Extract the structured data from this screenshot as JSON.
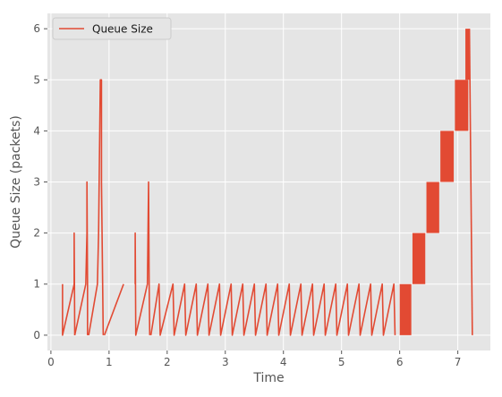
{
  "chart_data": {
    "type": "line",
    "title": "",
    "xlabel": "Time",
    "ylabel": "Queue Size (packets)",
    "xlim": [
      -0.06,
      7.56
    ],
    "ylim": [
      -0.3,
      6.3
    ],
    "x_ticks": [
      0,
      1,
      2,
      3,
      4,
      5,
      6,
      7
    ],
    "y_ticks": [
      0,
      1,
      2,
      3,
      4,
      5,
      6
    ],
    "grid": true,
    "style": "ggplot",
    "legend_position": "upper-left",
    "series": [
      {
        "name": "Queue Size",
        "color": "#E24A33",
        "segments": [
          [
            [
              0.2,
              1
            ],
            [
              0.2,
              0
            ],
            [
              0.4,
              1
            ],
            [
              0.4,
              2
            ],
            [
              0.41,
              0
            ]
          ],
          [
            [
              0.41,
              0
            ],
            [
              0.6,
              1
            ],
            [
              0.62,
              2
            ],
            [
              0.62,
              3
            ],
            [
              0.63,
              1
            ],
            [
              0.63,
              0
            ]
          ],
          [
            [
              0.65,
              0
            ],
            [
              0.8,
              1
            ],
            [
              0.82,
              2
            ],
            [
              0.83,
              3
            ],
            [
              0.84,
              4
            ],
            [
              0.85,
              5
            ],
            [
              0.87,
              5
            ],
            [
              0.87,
              3
            ],
            [
              0.89,
              1
            ],
            [
              0.9,
              0
            ]
          ],
          [
            [
              0.92,
              0
            ],
            [
              1.25,
              1
            ]
          ],
          [
            [
              1.45,
              1
            ],
            [
              1.45,
              2
            ],
            [
              1.46,
              0
            ],
            [
              1.66,
              1
            ],
            [
              1.67,
              2
            ],
            [
              1.68,
              3
            ],
            [
              1.69,
              1
            ],
            [
              1.7,
              0
            ]
          ],
          [
            [
              1.72,
              0
            ],
            [
              1.86,
              1
            ],
            [
              1.88,
              0
            ],
            [
              2.1,
              1
            ],
            [
              2.12,
              0
            ],
            [
              2.3,
              1
            ],
            [
              2.32,
              0
            ],
            [
              2.5,
              1
            ],
            [
              2.52,
              0
            ],
            [
              2.7,
              1
            ],
            [
              2.72,
              0
            ],
            [
              2.9,
              1
            ],
            [
              2.92,
              0
            ],
            [
              3.1,
              1
            ],
            [
              3.12,
              0
            ],
            [
              3.3,
              1
            ],
            [
              3.32,
              0
            ],
            [
              3.5,
              1
            ],
            [
              3.52,
              0
            ],
            [
              3.7,
              1
            ],
            [
              3.72,
              0
            ],
            [
              3.9,
              1
            ],
            [
              3.92,
              0
            ],
            [
              4.1,
              1
            ],
            [
              4.12,
              0
            ],
            [
              4.3,
              1
            ],
            [
              4.32,
              0
            ],
            [
              4.5,
              1
            ],
            [
              4.52,
              0
            ],
            [
              4.7,
              1
            ],
            [
              4.72,
              0
            ],
            [
              4.9,
              1
            ],
            [
              4.92,
              0
            ],
            [
              5.1,
              1
            ],
            [
              5.12,
              0
            ],
            [
              5.3,
              1
            ],
            [
              5.32,
              0
            ],
            [
              5.5,
              1
            ],
            [
              5.52,
              0
            ],
            [
              5.7,
              1
            ],
            [
              5.72,
              0
            ],
            [
              5.9,
              1
            ],
            [
              5.92,
              0
            ]
          ]
        ],
        "bands": [
          {
            "x": [
              6.0,
              6.2
            ],
            "low": 0,
            "high": 1
          },
          {
            "x": [
              6.22,
              6.44
            ],
            "low": 1,
            "high": 2
          },
          {
            "x": [
              6.46,
              6.68
            ],
            "low": 2,
            "high": 3
          },
          {
            "x": [
              6.7,
              6.93
            ],
            "low": 3,
            "high": 4
          },
          {
            "x": [
              6.95,
              7.18
            ],
            "low": 4,
            "high": 5
          },
          {
            "x": [
              7.13,
              7.2
            ],
            "low": 5,
            "high": 6
          }
        ],
        "tail": [
          [
            7.2,
            6
          ],
          [
            7.25,
            0
          ]
        ]
      }
    ]
  }
}
